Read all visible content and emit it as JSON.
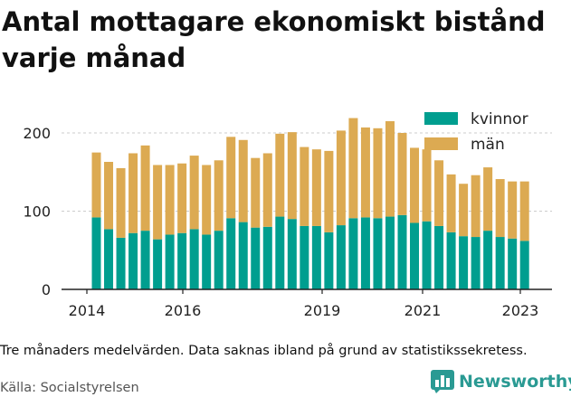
{
  "title": "Antal mottagare ekonomiskt bistånd varje månad",
  "note": "Tre månaders medelvärden. Data saknas ibland på grund av statistikssekretess.",
  "source": "Källa: Socialstyrelsen",
  "brand": {
    "name": "Newsworthy",
    "icon": "bar-chart-logo-icon"
  },
  "colors": {
    "kvinnor": "#009e8f",
    "man": "#dcaa52",
    "axis": "#222222",
    "grid": "#cccccc"
  },
  "chart_data": {
    "type": "bar",
    "stacked": true,
    "grid": true,
    "legend_position": "top-right",
    "ylim": [
      0,
      220
    ],
    "y_ticks": [
      "0",
      "100",
      "200"
    ],
    "x_ticks": [
      "2014",
      "2016",
      "2019",
      "2021",
      "2023"
    ],
    "legend": [
      "kvinnor",
      "män"
    ],
    "series": [
      {
        "name": "kvinnor",
        "values": [
          92,
          77,
          66,
          72,
          75,
          64,
          70,
          72,
          77,
          70,
          75,
          91,
          86,
          79,
          80,
          93,
          90,
          81,
          81,
          73,
          82,
          91,
          92,
          91,
          93,
          95,
          85,
          87,
          81,
          73,
          68,
          67,
          75,
          67,
          65,
          62
        ]
      },
      {
        "name": "män",
        "values": [
          83,
          86,
          89,
          102,
          109,
          95,
          89,
          89,
          94,
          89,
          90,
          104,
          105,
          89,
          94,
          106,
          111,
          101,
          98,
          104,
          121,
          128,
          115,
          115,
          122,
          105,
          96,
          92,
          84,
          74,
          67,
          79,
          81,
          74,
          73,
          76
        ]
      }
    ]
  }
}
